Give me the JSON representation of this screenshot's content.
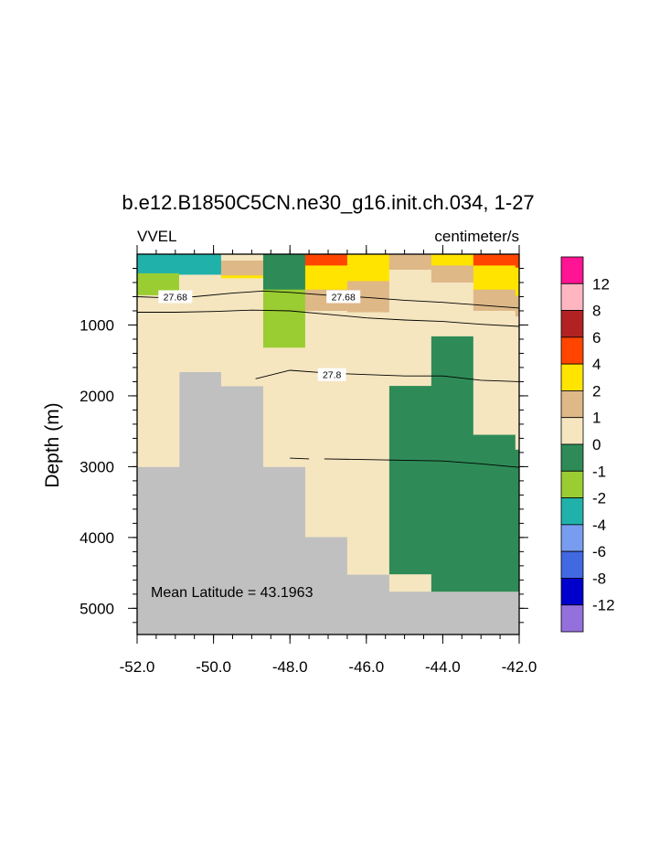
{
  "chart_data": {
    "type": "heatmap",
    "title": "b.e12.B1850C5CN.ne30_g16.init.ch.034, 1-27",
    "left_string": "VVEL",
    "right_string": "centimeter/s",
    "ylabel": "Depth (m)",
    "annotation": "Mean Latitude = 43.1963",
    "xlim": [
      -52.0,
      -42.0
    ],
    "ylim": [
      0,
      5370
    ],
    "x_ticks": [
      -52.0,
      -50.0,
      -48.0,
      -46.0,
      -44.0,
      -42.0
    ],
    "x_tick_labels": [
      "-52.0",
      "-50.0",
      "-48.0",
      "-46.0",
      "-44.0",
      "-42.0"
    ],
    "y_ticks": [
      1000,
      2000,
      3000,
      4000,
      5000
    ],
    "y_tick_labels": [
      "1000",
      "2000",
      "3000",
      "4000",
      "5000"
    ],
    "colorbar": {
      "levels": [
        "12",
        "8",
        "6",
        "4",
        "2",
        "1",
        "0",
        "-1",
        "-2",
        "-4",
        "-6",
        "-8",
        "-12"
      ],
      "colors": [
        "#ff1493",
        "#ffb6c1",
        "#b22222",
        "#ff4500",
        "#ffe400",
        "#deb887",
        "#f5e6c0",
        "#2e8b57",
        "#9acd32",
        "#20b2aa",
        "#789cf0",
        "#4169e1",
        "#0000cd",
        "#9370db"
      ]
    },
    "colors": {
      "missing": "#c0c0c0",
      "c_neg2_neg1": "#9acd32",
      "c_neg4_neg2": "#20b2aa",
      "c_neg1_0": "#2e8b57",
      "c_0_1": "#f5e6c0",
      "c_1_2": "#deb887",
      "c_2_4": "#ffe400",
      "c_4_6": "#ff4500"
    },
    "columns": [
      {
        "x0": -52.0,
        "x1": -50.9,
        "bottom": 3000,
        "cells": [
          [
            0,
            270,
            "c_neg4_neg2"
          ],
          [
            270,
            580,
            "c_neg2_neg1"
          ],
          [
            580,
            3000,
            "c_0_1"
          ]
        ]
      },
      {
        "x0": -50.9,
        "x1": -49.8,
        "bottom": 1660,
        "cells": [
          [
            0,
            290,
            "c_neg4_neg2"
          ],
          [
            290,
            1660,
            "c_0_1"
          ]
        ]
      },
      {
        "x0": -49.8,
        "x1": -48.7,
        "bottom": 1860,
        "cells": [
          [
            0,
            90,
            "c_0_1"
          ],
          [
            90,
            300,
            "c_1_2"
          ],
          [
            300,
            340,
            "c_2_4"
          ],
          [
            340,
            1860,
            "c_0_1"
          ]
        ]
      },
      {
        "x0": -48.7,
        "x1": -47.6,
        "bottom": 3000,
        "cells": [
          [
            0,
            500,
            "c_neg1_0"
          ],
          [
            500,
            1320,
            "c_neg2_neg1"
          ],
          [
            1320,
            3000,
            "c_0_1"
          ]
        ]
      },
      {
        "x0": -47.6,
        "x1": -46.5,
        "bottom": 3990,
        "cells": [
          [
            0,
            160,
            "c_4_6"
          ],
          [
            160,
            500,
            "c_2_4"
          ],
          [
            500,
            800,
            "c_1_2"
          ],
          [
            800,
            3990,
            "c_0_1"
          ]
        ]
      },
      {
        "x0": -46.5,
        "x1": -45.4,
        "bottom": 4520,
        "cells": [
          [
            0,
            380,
            "c_2_4"
          ],
          [
            380,
            820,
            "c_1_2"
          ],
          [
            820,
            4520,
            "c_0_1"
          ]
        ]
      },
      {
        "x0": -45.4,
        "x1": -44.3,
        "bottom": 4760,
        "cells": [
          [
            0,
            220,
            "c_1_2"
          ],
          [
            220,
            1860,
            "c_0_1"
          ],
          [
            1860,
            4520,
            "c_neg1_0"
          ],
          [
            4520,
            4760,
            "c_0_1"
          ]
        ]
      },
      {
        "x0": -44.3,
        "x1": -43.2,
        "bottom": 4760,
        "cells": [
          [
            0,
            160,
            "c_2_4"
          ],
          [
            160,
            400,
            "c_1_2"
          ],
          [
            400,
            1160,
            "c_0_1"
          ],
          [
            1160,
            4760,
            "c_neg1_0"
          ]
        ]
      },
      {
        "x0": -43.2,
        "x1": -42.1,
        "bottom": 4760,
        "cells": [
          [
            0,
            160,
            "c_4_6"
          ],
          [
            160,
            500,
            "c_2_4"
          ],
          [
            500,
            800,
            "c_1_2"
          ],
          [
            800,
            2550,
            "c_0_1"
          ],
          [
            2550,
            4760,
            "c_neg1_0"
          ]
        ]
      },
      {
        "x0": -42.1,
        "x1": -42.0,
        "bottom": 4760,
        "cells": [
          [
            0,
            190,
            "c_4_6"
          ],
          [
            190,
            590,
            "c_2_4"
          ],
          [
            590,
            880,
            "c_1_2"
          ],
          [
            880,
            2760,
            "c_0_1"
          ],
          [
            2760,
            4760,
            "c_neg1_0"
          ]
        ]
      }
    ],
    "contours": [
      {
        "label": "27.68",
        "segments": [
          [
            [
              -52.0,
              600
            ],
            [
              -51.5,
              610
            ],
            [
              -50.5,
              600
            ],
            [
              -49.5,
              550
            ],
            [
              -48.7,
              520
            ],
            [
              -48.0,
              540
            ],
            [
              -47.0,
              580
            ],
            [
              -46.0,
              610
            ],
            [
              -45.0,
              650
            ],
            [
              -44.0,
              680
            ],
            [
              -43.0,
              720
            ],
            [
              -42.0,
              760
            ]
          ]
        ],
        "label_at": [
          [
            -51.0,
            600
          ],
          [
            -46.6,
            600
          ]
        ]
      },
      {
        "label": "",
        "segments": [
          [
            [
              -52.0,
              820
            ],
            [
              -51.0,
              820
            ],
            [
              -50.0,
              810
            ],
            [
              -49.0,
              790
            ],
            [
              -48.0,
              800
            ],
            [
              -47.0,
              850
            ],
            [
              -46.0,
              900
            ],
            [
              -45.0,
              930
            ],
            [
              -44.0,
              950
            ],
            [
              -43.0,
              990
            ],
            [
              -42.0,
              1020
            ]
          ]
        ],
        "label_at": []
      },
      {
        "label": "27.8",
        "segments": [
          [
            [
              -48.9,
              1760
            ],
            [
              -48.0,
              1640
            ],
            [
              -47.0,
              1680
            ],
            [
              -46.5,
              1690
            ],
            [
              -46.0,
              1700
            ],
            [
              -45.0,
              1720
            ],
            [
              -44.0,
              1720
            ],
            [
              -43.0,
              1780
            ],
            [
              -42.0,
              1800
            ]
          ]
        ],
        "label_at": [
          [
            -46.9,
            1700
          ]
        ]
      },
      {
        "label": "",
        "segments": [
          [
            [
              -48.0,
              2880
            ],
            [
              -47.5,
              2890
            ]
          ],
          [
            [
              -47.1,
              2890
            ],
            [
              -46.0,
              2900
            ],
            [
              -45.0,
              2910
            ],
            [
              -44.0,
              2920
            ],
            [
              -43.0,
              2960
            ],
            [
              -42.0,
              3010
            ]
          ]
        ],
        "label_at": []
      }
    ]
  }
}
